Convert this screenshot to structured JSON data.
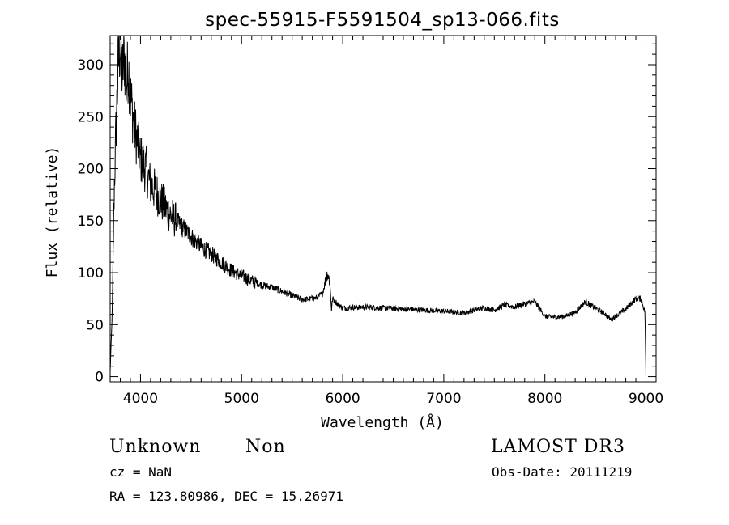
{
  "chart_data": {
    "type": "line",
    "title": "spec-55915-F5591504_sp13-066.fits",
    "xlabel": "Wavelength (Å)",
    "ylabel": "Flux (relative)",
    "xlim": [
      3700,
      9100
    ],
    "ylim": [
      -5,
      328
    ],
    "x_ticks": [
      4000,
      5000,
      6000,
      7000,
      8000,
      9000
    ],
    "y_ticks": [
      0,
      50,
      100,
      150,
      200,
      250,
      300
    ],
    "grid": false,
    "series": [
      {
        "x": [
          3700,
          3720,
          3740,
          3760,
          3780,
          3800,
          3820,
          3840,
          3860,
          3880,
          3900,
          3920,
          3940,
          3960,
          3980,
          4000,
          4050,
          4100,
          4150,
          4200,
          4250,
          4300,
          4400,
          4500,
          4600,
          4700,
          4800,
          4900,
          5000,
          5100,
          5200,
          5300,
          5400,
          5500,
          5600,
          5700,
          5750,
          5800,
          5830,
          5850,
          5870,
          5880,
          5890,
          5900,
          5950,
          6000,
          6200,
          6400,
          6600,
          6800,
          7000,
          7200,
          7300,
          7400,
          7500,
          7600,
          7700,
          7800,
          7900,
          8000,
          8100,
          8200,
          8300,
          8400,
          8500,
          8600,
          8650,
          8700,
          8800,
          8850,
          8900,
          8950,
          8990,
          9000
        ],
        "y": [
          5,
          60,
          180,
          245,
          300,
          320,
          290,
          310,
          280,
          300,
          270,
          255,
          240,
          230,
          220,
          210,
          200,
          185,
          178,
          170,
          162,
          155,
          145,
          135,
          125,
          118,
          110,
          102,
          97,
          92,
          88,
          86,
          82,
          78,
          74,
          75,
          76,
          80,
          92,
          100,
          92,
          80,
          64,
          75,
          70,
          66,
          67,
          66,
          65,
          64,
          63,
          61,
          64,
          66,
          64,
          69,
          67,
          70,
          72,
          58,
          57,
          58,
          62,
          72,
          66,
          60,
          55,
          58,
          65,
          70,
          75,
          75,
          62,
          0
        ]
      }
    ]
  },
  "info": {
    "object_class": "Unknown",
    "subclass": "Non",
    "survey": "LAMOST DR3",
    "cz": "cz = NaN",
    "obs_date": "Obs-Date: 20111219",
    "coords": "RA = 123.80986, DEC =  15.26971"
  }
}
